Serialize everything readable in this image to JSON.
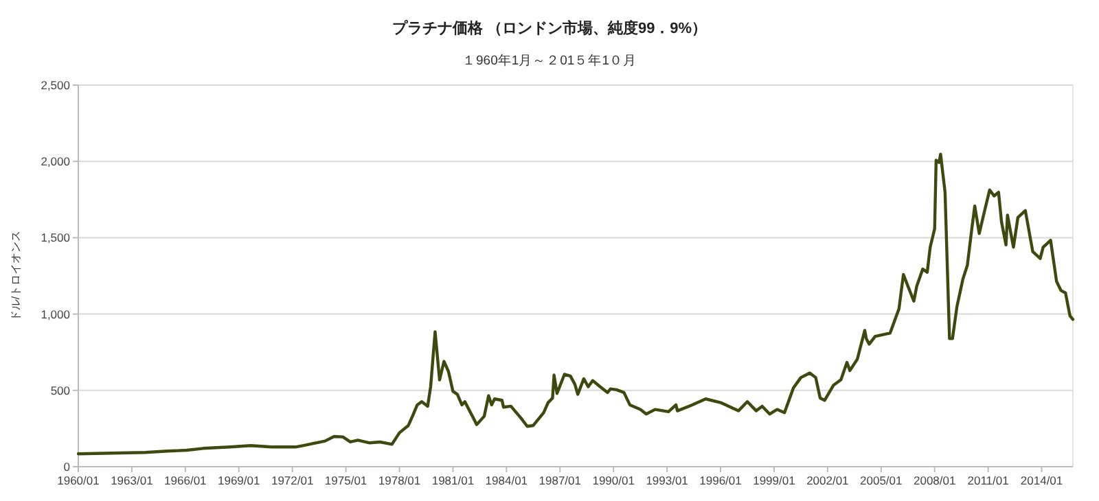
{
  "chart_data": {
    "type": "line",
    "title": "プラチナ価格 （ロンドン市場、純度99．9%）",
    "subtitle": "１960年1月～２01５年1０月",
    "ylabel": "ドル/トロイオンス",
    "x": [
      "1960-01",
      "1963-10",
      "1965-01",
      "1966-02",
      "1967-01",
      "1968-07",
      "1969-09",
      "1970-11",
      "1972-03",
      "1972-08",
      "1973-02",
      "1973-11",
      "1974-05",
      "1974-11",
      "1975-04",
      "1975-09",
      "1976-05",
      "1976-12",
      "1977-08",
      "1978-01",
      "1978-07",
      "1978-10",
      "1979-01",
      "1979-04",
      "1979-08",
      "1979-10",
      "1980-01",
      "1980-04",
      "1980-07",
      "1980-10",
      "1981-01",
      "1981-04",
      "1981-07",
      "1981-09",
      "1982-05",
      "1982-10",
      "1983-01",
      "1983-03",
      "1983-05",
      "1983-10",
      "1983-11",
      "1984-04",
      "1984-11",
      "1985-03",
      "1985-07",
      "1986-02",
      "1986-05",
      "1986-08",
      "1986-09",
      "1986-11",
      "1987-04",
      "1987-08",
      "1987-11",
      "1988-01",
      "1988-05",
      "1988-08",
      "1988-11",
      "1989-04",
      "1989-09",
      "1989-11",
      "1990-03",
      "1990-08",
      "1990-12",
      "1991-07",
      "1991-11",
      "1992-05",
      "1993-02",
      "1993-07",
      "1993-08",
      "1994-06",
      "1995-03",
      "1996-01",
      "1997-01",
      "1997-07",
      "1998-01",
      "1998-05",
      "1998-10",
      "1999-03",
      "1999-08",
      "1999-11",
      "2000-02",
      "2000-07",
      "2001-01",
      "2001-05",
      "2001-08",
      "2001-11",
      "2002-05",
      "2002-10",
      "2003-02",
      "2003-04",
      "2003-09",
      "2004-02",
      "2004-03",
      "2004-05",
      "2004-09",
      "2005-07",
      "2006-01",
      "2006-04",
      "2006-07",
      "2006-11",
      "2007-01",
      "2007-05",
      "2007-08",
      "2007-10",
      "2008-01",
      "2008-02",
      "2008-04",
      "2008-05",
      "2008-08",
      "2008-11",
      "2009-01",
      "2009-04",
      "2009-08",
      "2009-11",
      "2010-02",
      "2010-04",
      "2010-07",
      "2010-11",
      "2011-02",
      "2011-05",
      "2011-08",
      "2011-10",
      "2012-01",
      "2012-02",
      "2012-06",
      "2012-09",
      "2013-02",
      "2013-07",
      "2013-12",
      "2014-02",
      "2014-07",
      "2014-11",
      "2015-02",
      "2015-05",
      "2015-08",
      "2015-10"
    ],
    "series": [
      {
        "color": "#3d4a0f",
        "values": [
          84,
          93,
          102,
          108,
          120,
          129,
          138,
          129,
          129,
          138,
          150,
          168,
          198,
          195,
          162,
          174,
          156,
          162,
          147,
          222,
          270,
          336,
          405,
          426,
          396,
          524,
          884,
          569,
          690,
          623,
          494,
          474,
          405,
          426,
          276,
          330,
          465,
          405,
          444,
          435,
          390,
          396,
          315,
          264,
          270,
          354,
          420,
          450,
          600,
          480,
          605,
          594,
          540,
          474,
          576,
          524,
          564,
          524,
          486,
          510,
          504,
          486,
          405,
          375,
          345,
          375,
          360,
          405,
          366,
          405,
          444,
          420,
          366,
          426,
          366,
          396,
          345,
          375,
          354,
          435,
          516,
          584,
          614,
          584,
          450,
          435,
          534,
          570,
          683,
          630,
          705,
          893,
          840,
          803,
          854,
          875,
          1034,
          1259,
          1184,
          1085,
          1184,
          1295,
          1274,
          1438,
          1558,
          2008,
          1993,
          2047,
          1798,
          839,
          839,
          1049,
          1229,
          1319,
          1558,
          1708,
          1528,
          1693,
          1813,
          1774,
          1798,
          1603,
          1453,
          1648,
          1438,
          1633,
          1678,
          1409,
          1364,
          1438,
          1483,
          1214,
          1154,
          1139,
          989,
          965
        ]
      }
    ],
    "xlim": [
      "1960-01",
      "2015-10"
    ],
    "xticks": [
      {
        "value": "1960-01",
        "label": "1960/01"
      },
      {
        "value": "1963-01",
        "label": "1963/01"
      },
      {
        "value": "1966-01",
        "label": "1966/01"
      },
      {
        "value": "1969-01",
        "label": "1969/01"
      },
      {
        "value": "1972-01",
        "label": "1972/01"
      },
      {
        "value": "1975-01",
        "label": "1975/01"
      },
      {
        "value": "1978-01",
        "label": "1978/01"
      },
      {
        "value": "1981-01",
        "label": "1981/01"
      },
      {
        "value": "1984-01",
        "label": "1984/01"
      },
      {
        "value": "1987-01",
        "label": "1987/01"
      },
      {
        "value": "1990-01",
        "label": "1990/01"
      },
      {
        "value": "1993-01",
        "label": "1993/01"
      },
      {
        "value": "1996-01",
        "label": "1996/01"
      },
      {
        "value": "1999-01",
        "label": "1999/01"
      },
      {
        "value": "2002-01",
        "label": "2002/01"
      },
      {
        "value": "2005-01",
        "label": "2005/01"
      },
      {
        "value": "2008-01",
        "label": "2008/01"
      },
      {
        "value": "2011-01",
        "label": "2011/01"
      },
      {
        "value": "2014-01",
        "label": "2014/01"
      }
    ],
    "ylim": [
      0,
      2500
    ],
    "yticks": [
      {
        "value": 0,
        "label": "0"
      },
      {
        "value": 500,
        "label": "500"
      },
      {
        "value": 1000,
        "label": "1,000"
      },
      {
        "value": 1500,
        "label": "1,500"
      },
      {
        "value": 2000,
        "label": "2,000"
      },
      {
        "value": 2500,
        "label": "2,500"
      }
    ],
    "grid": "y"
  }
}
